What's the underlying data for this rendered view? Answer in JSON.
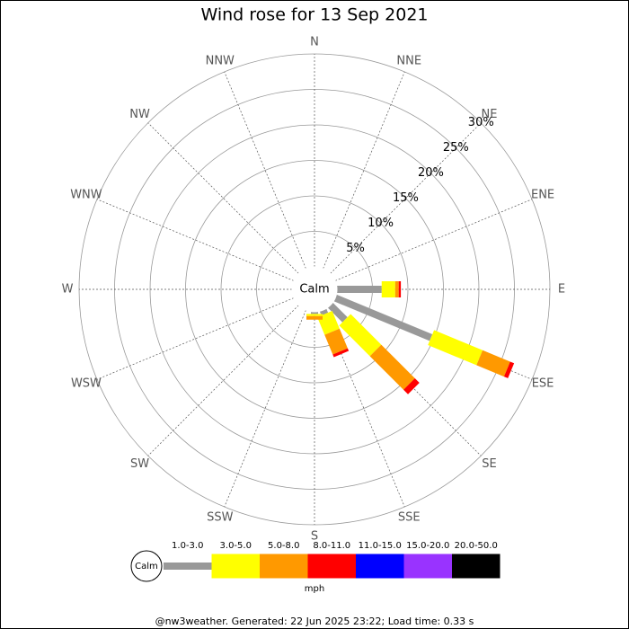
{
  "chart_data": {
    "type": "wind-rose",
    "title": "Wind rose for 13 Sep 2021",
    "center_label": "Calm",
    "categories": [
      "N",
      "NNE",
      "NE",
      "ENE",
      "E",
      "ESE",
      "SE",
      "SSE",
      "S",
      "SSW",
      "SW",
      "WSW",
      "W",
      "WNW",
      "NW",
      "NNW"
    ],
    "series": [
      {
        "name": "1.0-3.0",
        "color": "#999999",
        "values": [
          0,
          0,
          0,
          0,
          6.3,
          14.6,
          2.9,
          0.6,
          0.3,
          0,
          0,
          0,
          0,
          0,
          0,
          0
        ]
      },
      {
        "name": "3.0-5.0",
        "color": "#ffff00",
        "values": [
          0,
          0,
          0,
          0,
          1.9,
          7.4,
          6.1,
          2.7,
          0.3,
          0,
          0,
          0,
          0,
          0,
          0,
          0
        ]
      },
      {
        "name": "5.0-8.0",
        "color": "#ff9900",
        "values": [
          0,
          0,
          0,
          0,
          0.5,
          4.2,
          6.7,
          3.0,
          0.5,
          0,
          0,
          0,
          0,
          0,
          0,
          0
        ]
      },
      {
        "name": "8.0-11.0",
        "color": "#ff0000",
        "values": [
          0,
          0,
          0,
          0,
          0.3,
          0.6,
          0.9,
          0.4,
          0,
          0,
          0,
          0,
          0,
          0,
          0,
          0
        ]
      },
      {
        "name": "11.0-15.0",
        "color": "#0000ff",
        "values": [
          0,
          0,
          0,
          0,
          0,
          0,
          0,
          0,
          0,
          0,
          0,
          0,
          0,
          0,
          0,
          0
        ]
      },
      {
        "name": "15.0-20.0",
        "color": "#9933ff",
        "values": [
          0,
          0,
          0,
          0,
          0,
          0,
          0,
          0,
          0,
          0,
          0,
          0,
          0,
          0,
          0,
          0
        ]
      },
      {
        "name": "20.0-50.0",
        "color": "#000000",
        "values": [
          0,
          0,
          0,
          0,
          0,
          0,
          0,
          0,
          0,
          0,
          0,
          0,
          0,
          0,
          0,
          0
        ]
      }
    ],
    "rlim": [
      0,
      30
    ],
    "rticks": [
      {
        "value": 5,
        "label": "5%"
      },
      {
        "value": 10,
        "label": "10%"
      },
      {
        "value": 15,
        "label": "15%"
      },
      {
        "value": 20,
        "label": "20%"
      },
      {
        "value": 25,
        "label": "25%"
      },
      {
        "value": 30,
        "label": "30%"
      }
    ],
    "legend_unit": "mph",
    "footer": "@nw3weather. Generated: 22 Jun 2025 23:22; Load time: 0.33 s"
  }
}
